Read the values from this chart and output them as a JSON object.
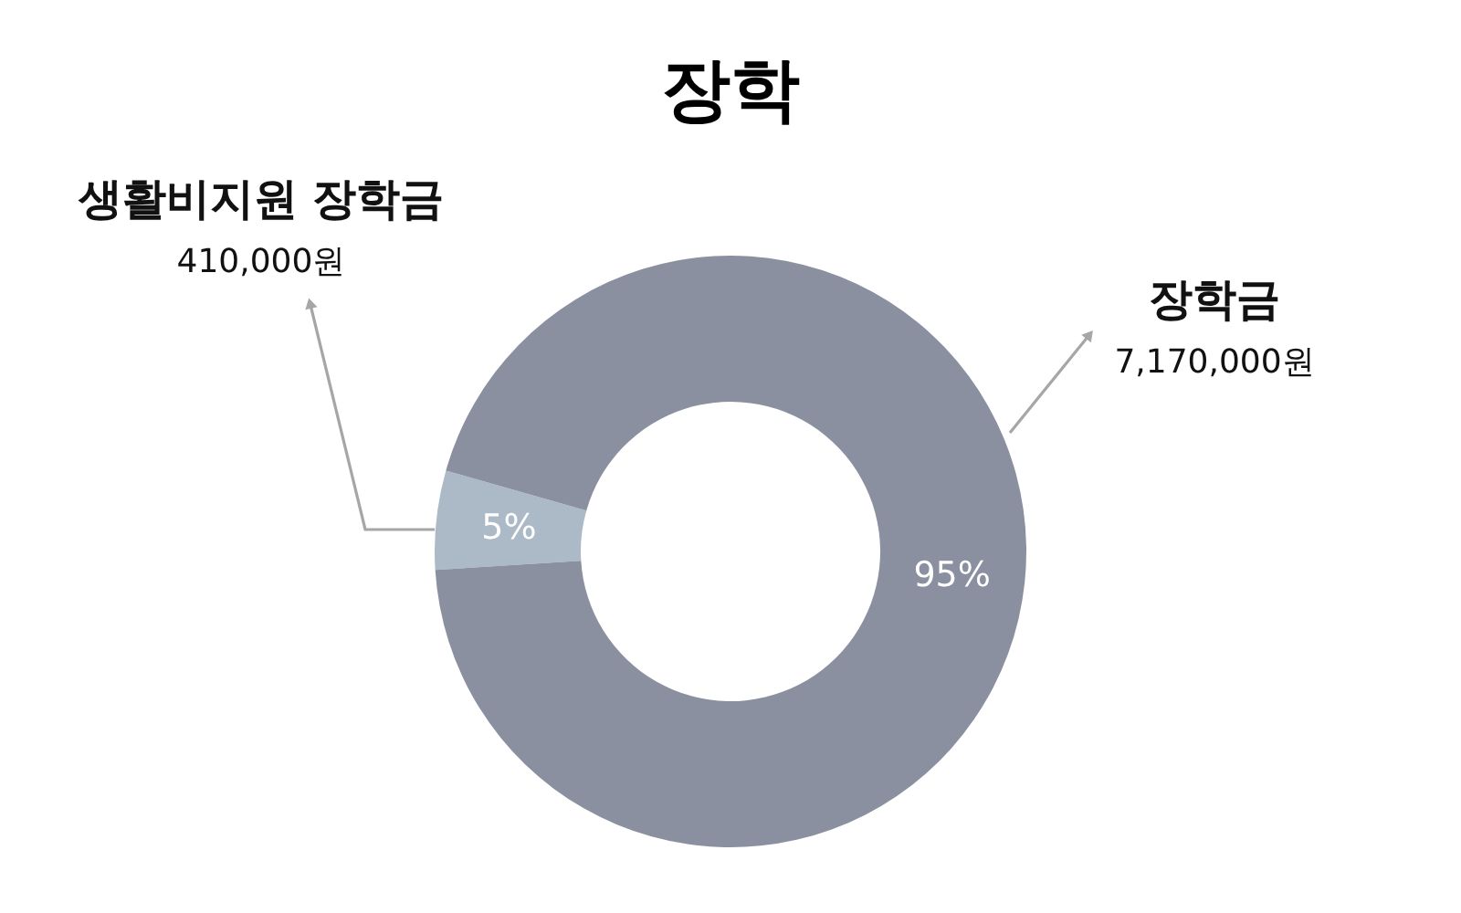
{
  "chart_data": {
    "type": "donut",
    "title": "장학",
    "categories": [
      "생활비지원 장학금",
      "장학금"
    ],
    "values": [
      410000,
      7170000
    ],
    "colors": [
      "#abbac6",
      "#8a909f"
    ],
    "value_labels": [
      "410,000원",
      "7,170,000원"
    ],
    "annotations": [
      "5%",
      "95%"
    ]
  }
}
